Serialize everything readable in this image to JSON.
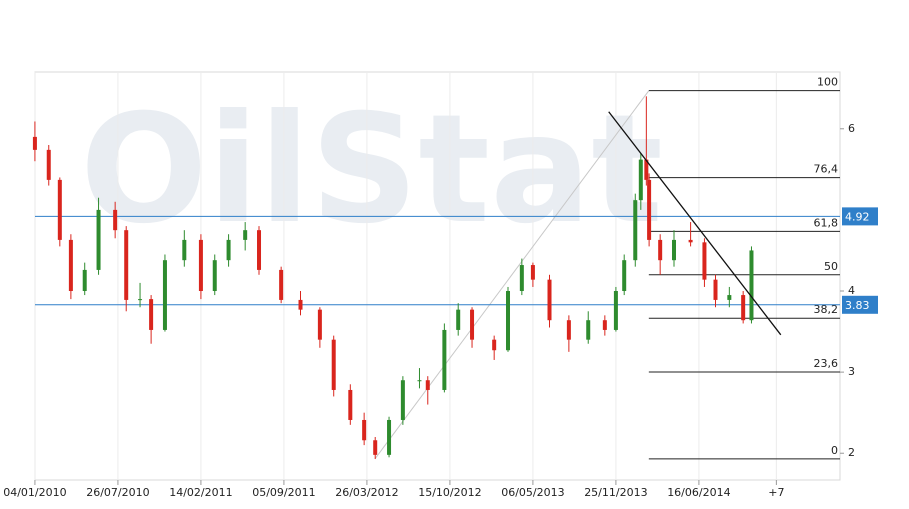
{
  "chart_data": {
    "type": "candlestick",
    "watermark": "OilStat",
    "up_color": "#2e8b2e",
    "down_color": "#d9251d",
    "hline_color": "#2f7fc9",
    "xlim": [
      -2.5,
      291
    ],
    "ylim": [
      1.67,
      6.7
    ],
    "xticks": [
      {
        "value": 0,
        "label": "04/01/2010"
      },
      {
        "value": 30,
        "label": "26/07/2010"
      },
      {
        "value": 60,
        "label": "14/02/2011"
      },
      {
        "value": 90,
        "label": "05/09/2011"
      },
      {
        "value": 120,
        "label": "26/03/2012"
      },
      {
        "value": 150,
        "label": "15/10/2012"
      },
      {
        "value": 180,
        "label": "06/05/2013"
      },
      {
        "value": 210,
        "label": "25/11/2013"
      },
      {
        "value": 240,
        "label": "16/06/2014"
      },
      {
        "value": 268,
        "label": "+7"
      }
    ],
    "yticks": [
      2,
      3,
      4,
      6
    ],
    "grid": true,
    "x": [
      0,
      5,
      9,
      13,
      18,
      23,
      29,
      33,
      38,
      42,
      47,
      54,
      60,
      65,
      70,
      76,
      81,
      89,
      96,
      103,
      108,
      114,
      119,
      123,
      128,
      133,
      139,
      142,
      148,
      153,
      158,
      166,
      171,
      176,
      180,
      186,
      193,
      200,
      206,
      210,
      213,
      217,
      219,
      221,
      222,
      226,
      231,
      237,
      242,
      246,
      251,
      256,
      259
    ],
    "open": [
      5.9,
      5.74,
      5.37,
      4.63,
      4.0,
      4.26,
      5.0,
      4.75,
      3.89,
      3.9,
      3.52,
      4.38,
      4.63,
      4.0,
      4.38,
      4.63,
      4.75,
      4.26,
      3.89,
      3.77,
      3.4,
      2.78,
      2.41,
      2.16,
      1.98,
      2.41,
      2.9,
      2.9,
      2.78,
      3.52,
      3.77,
      3.4,
      3.27,
      4.0,
      4.32,
      4.14,
      3.64,
      3.4,
      3.64,
      3.52,
      4.0,
      4.38,
      5.12,
      5.62,
      5.37,
      4.63,
      4.38,
      4.63,
      4.6,
      4.14,
      3.89,
      3.95,
      3.64
    ],
    "high": [
      6.09,
      5.8,
      5.4,
      4.7,
      4.35,
      5.15,
      5.1,
      4.8,
      4.1,
      3.95,
      4.45,
      4.75,
      4.7,
      4.45,
      4.7,
      4.85,
      4.8,
      4.3,
      4.0,
      3.8,
      3.45,
      2.85,
      2.5,
      2.2,
      2.45,
      2.95,
      3.05,
      2.95,
      3.6,
      3.85,
      3.8,
      3.45,
      4.05,
      4.4,
      4.35,
      4.2,
      3.7,
      3.75,
      3.7,
      4.05,
      4.45,
      5.2,
      5.7,
      6.4,
      5.45,
      4.7,
      4.75,
      4.85,
      4.65,
      4.2,
      4.05,
      4.0,
      4.55
    ],
    "low": [
      5.6,
      5.3,
      4.55,
      3.9,
      3.95,
      4.2,
      4.65,
      3.75,
      3.8,
      3.35,
      3.5,
      4.3,
      3.9,
      3.95,
      4.3,
      4.5,
      4.2,
      3.85,
      3.7,
      3.3,
      2.7,
      2.35,
      2.1,
      1.93,
      1.95,
      2.35,
      2.8,
      2.6,
      2.75,
      3.45,
      3.3,
      3.15,
      3.25,
      3.95,
      4.05,
      3.55,
      3.25,
      3.35,
      3.45,
      3.5,
      3.95,
      4.3,
      5.0,
      5.3,
      4.55,
      4.2,
      4.3,
      4.55,
      4.05,
      3.8,
      3.8,
      3.6,
      3.6
    ],
    "close": [
      5.74,
      5.37,
      4.63,
      4.0,
      4.26,
      5.0,
      4.75,
      3.89,
      3.9,
      3.52,
      4.38,
      4.63,
      4.0,
      4.38,
      4.63,
      4.75,
      4.26,
      3.89,
      3.77,
      3.4,
      2.78,
      2.41,
      2.16,
      1.98,
      2.41,
      2.9,
      2.9,
      2.78,
      3.52,
      3.77,
      3.4,
      3.27,
      4.0,
      4.32,
      4.14,
      3.64,
      3.4,
      3.64,
      3.52,
      4.0,
      4.38,
      5.12,
      5.62,
      5.37,
      4.63,
      4.38,
      4.63,
      4.6,
      4.14,
      3.89,
      3.95,
      3.64,
      4.5
    ],
    "hlines": [
      4.92,
      3.83
    ],
    "trendline": {
      "x": [
        207.4,
        269.6
      ],
      "y": [
        6.21,
        3.46
      ]
    },
    "fibonacci": {
      "x": [
        122.9,
        221.9
      ],
      "y": [
        1.93,
        6.47
      ],
      "levels": [
        100,
        {
          "value": 76.4,
          "label": "76,4"
        },
        {
          "value": 61.8,
          "label": "61,8"
        },
        50,
        {
          "value": 38.2,
          "label": "38,2"
        },
        {
          "value": 23.6,
          "label": "23,6"
        },
        0
      ]
    }
  }
}
